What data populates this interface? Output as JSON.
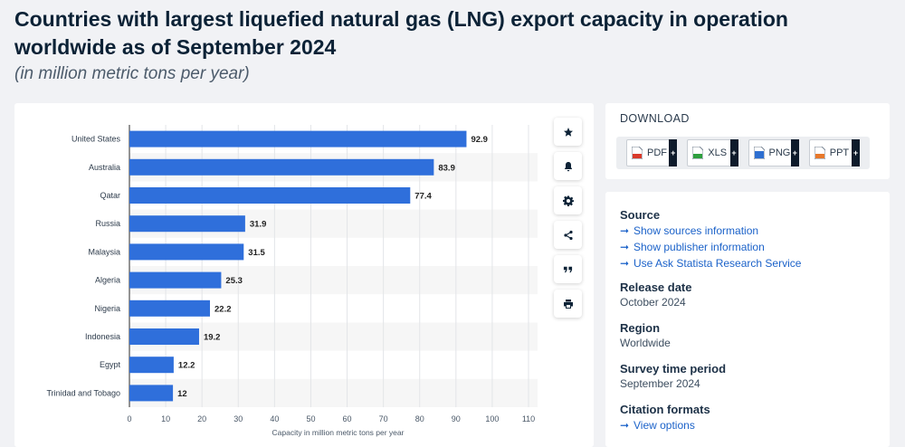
{
  "page": {
    "title": "Countries with largest liquefied natural gas (LNG) export capacity in operation worldwide as of September 2024",
    "subtitle": "(in million metric tons per year)"
  },
  "chart_data": {
    "type": "bar",
    "orientation": "horizontal",
    "categories": [
      "United States",
      "Australia",
      "Qatar",
      "Russia",
      "Malaysia",
      "Algeria",
      "Nigeria",
      "Indonesia",
      "Egypt",
      "Trinidad and Tobago"
    ],
    "values": [
      92.9,
      83.9,
      77.4,
      31.9,
      31.5,
      25.3,
      22.2,
      19.2,
      12.2,
      12
    ],
    "value_labels": [
      "92.9",
      "83.9",
      "77.4",
      "31.9",
      "31.5",
      "25.3",
      "22.2",
      "19.2",
      "12.2",
      "12"
    ],
    "xlabel": "Capacity in million metric tons per year",
    "xlim": [
      0,
      110
    ],
    "xticks": [
      0,
      10,
      20,
      30,
      40,
      50,
      60,
      70,
      80,
      90,
      100,
      110
    ],
    "grid": true,
    "bar_color": "#2f6fdb",
    "stripe_color": "#f6f6f6"
  },
  "tools": [
    {
      "name": "star-icon",
      "label": "Favorite"
    },
    {
      "name": "bell-icon",
      "label": "Notification"
    },
    {
      "name": "gear-icon",
      "label": "Settings"
    },
    {
      "name": "share-icon",
      "label": "Share"
    },
    {
      "name": "quote-icon",
      "label": "Citation"
    },
    {
      "name": "print-icon",
      "label": "Print"
    }
  ],
  "download": {
    "heading": "DOWNLOAD",
    "formats": [
      {
        "label": "PDF",
        "icon": "pdf-file-icon",
        "color": "#d93a2b"
      },
      {
        "label": "XLS",
        "icon": "xls-file-icon",
        "color": "#2e9e3e"
      },
      {
        "label": "PNG",
        "icon": "png-file-icon",
        "color": "#2e6fd0"
      },
      {
        "label": "PPT",
        "icon": "ppt-file-icon",
        "color": "#e8782a"
      }
    ],
    "plus": "+"
  },
  "meta": {
    "source_label": "Source",
    "source_links": [
      "Show sources information",
      "Show publisher information",
      "Use Ask Statista Research Service"
    ],
    "release_label": "Release date",
    "release_value": "October 2024",
    "region_label": "Region",
    "region_value": "Worldwide",
    "survey_label": "Survey time period",
    "survey_value": "September 2024",
    "citation_label": "Citation formats",
    "citation_link": "View options",
    "arrow": "➞"
  }
}
